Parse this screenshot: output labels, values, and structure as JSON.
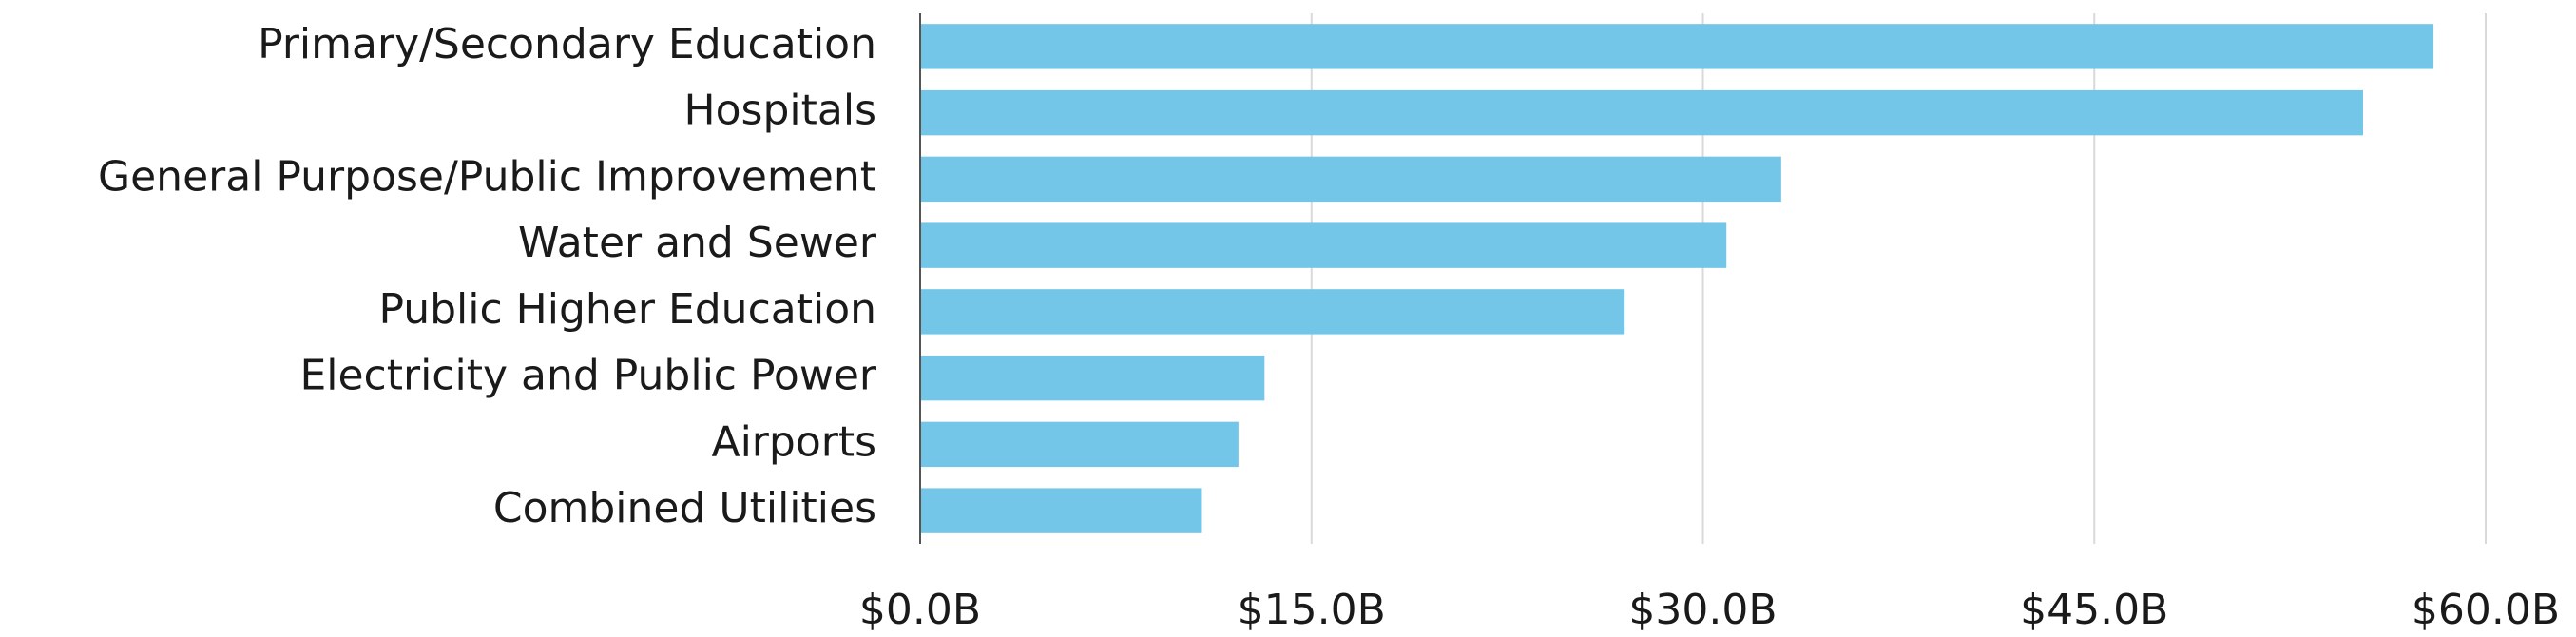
{
  "chart_data": {
    "type": "hbar",
    "categories": [
      "Primary/Secondary Education",
      "Hospitals",
      "General Purpose/Public Improvement",
      "Water and Sewer",
      "Public Higher Education",
      "Electricity and Public Power",
      "Airports",
      "Combined Utilities"
    ],
    "values": [
      58.0,
      55.3,
      33.0,
      30.9,
      27.0,
      13.2,
      12.2,
      10.8
    ],
    "color": "#74c6e8",
    "xlim": [
      0,
      60
    ],
    "xticks": [
      {
        "value": 0,
        "label": "$0.0B"
      },
      {
        "value": 15,
        "label": "$15.0B"
      },
      {
        "value": 30,
        "label": "$30.0B"
      },
      {
        "value": 45,
        "label": "$45.0B"
      },
      {
        "value": 60,
        "label": "$60.0B"
      }
    ],
    "grid": true
  }
}
